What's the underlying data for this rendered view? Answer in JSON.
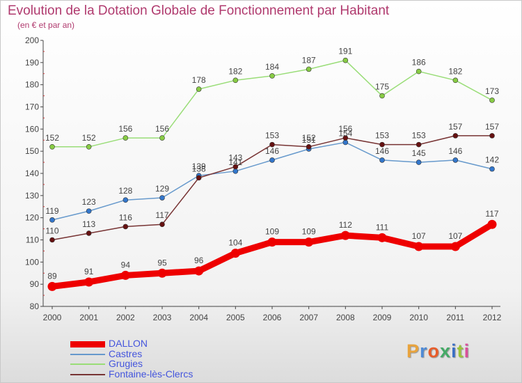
{
  "title": "Evolution de la Dotation Globale de Fonctionnement par Habitant",
  "subtitle": "(en € et par an)",
  "logo": {
    "text": "Proxiti",
    "colors": [
      "#e8a33d",
      "#4f8bd6",
      "#e85d2b",
      "#44aa66",
      "#3b6fc4",
      "#9cc43b",
      "#d94f9b"
    ]
  },
  "colors": {
    "title": "#b03a6e",
    "axis": "#444444",
    "legend_text": "#4455dd"
  },
  "chart_data": {
    "type": "line",
    "x": [
      "2000",
      "2001",
      "2002",
      "2003",
      "2004",
      "2005",
      "2006",
      "2007",
      "2008",
      "2009",
      "2010",
      "2011",
      "2012"
    ],
    "ylim": [
      80,
      200
    ],
    "yticks": [
      80,
      90,
      100,
      110,
      120,
      130,
      140,
      150,
      160,
      170,
      180,
      190,
      200
    ],
    "grid": false,
    "legend_position": "bottom-left",
    "series": [
      {
        "name": "DALLON",
        "color": "#ee0000",
        "marker": "#ee0000",
        "width": 9,
        "values": [
          89,
          91,
          94,
          95,
          96,
          104,
          109,
          109,
          112,
          111,
          107,
          107,
          117
        ]
      },
      {
        "name": "Castres",
        "color": "#6699cc",
        "marker": "#3377cc",
        "width": 1.5,
        "values": [
          119,
          123,
          128,
          129,
          139,
          141,
          146,
          151,
          154,
          146,
          145,
          146,
          142
        ]
      },
      {
        "name": "Grugies",
        "color": "#99dd77",
        "marker": "#88cc44",
        "width": 1.5,
        "values": [
          152,
          152,
          156,
          156,
          178,
          182,
          184,
          187,
          191,
          175,
          186,
          182,
          173
        ]
      },
      {
        "name": "Fontaine-lès-Clercs",
        "color": "#773333",
        "marker": "#661111",
        "width": 1.5,
        "values": [
          110,
          113,
          116,
          117,
          138,
          143,
          153,
          152,
          156,
          153,
          153,
          157,
          157
        ]
      }
    ]
  }
}
